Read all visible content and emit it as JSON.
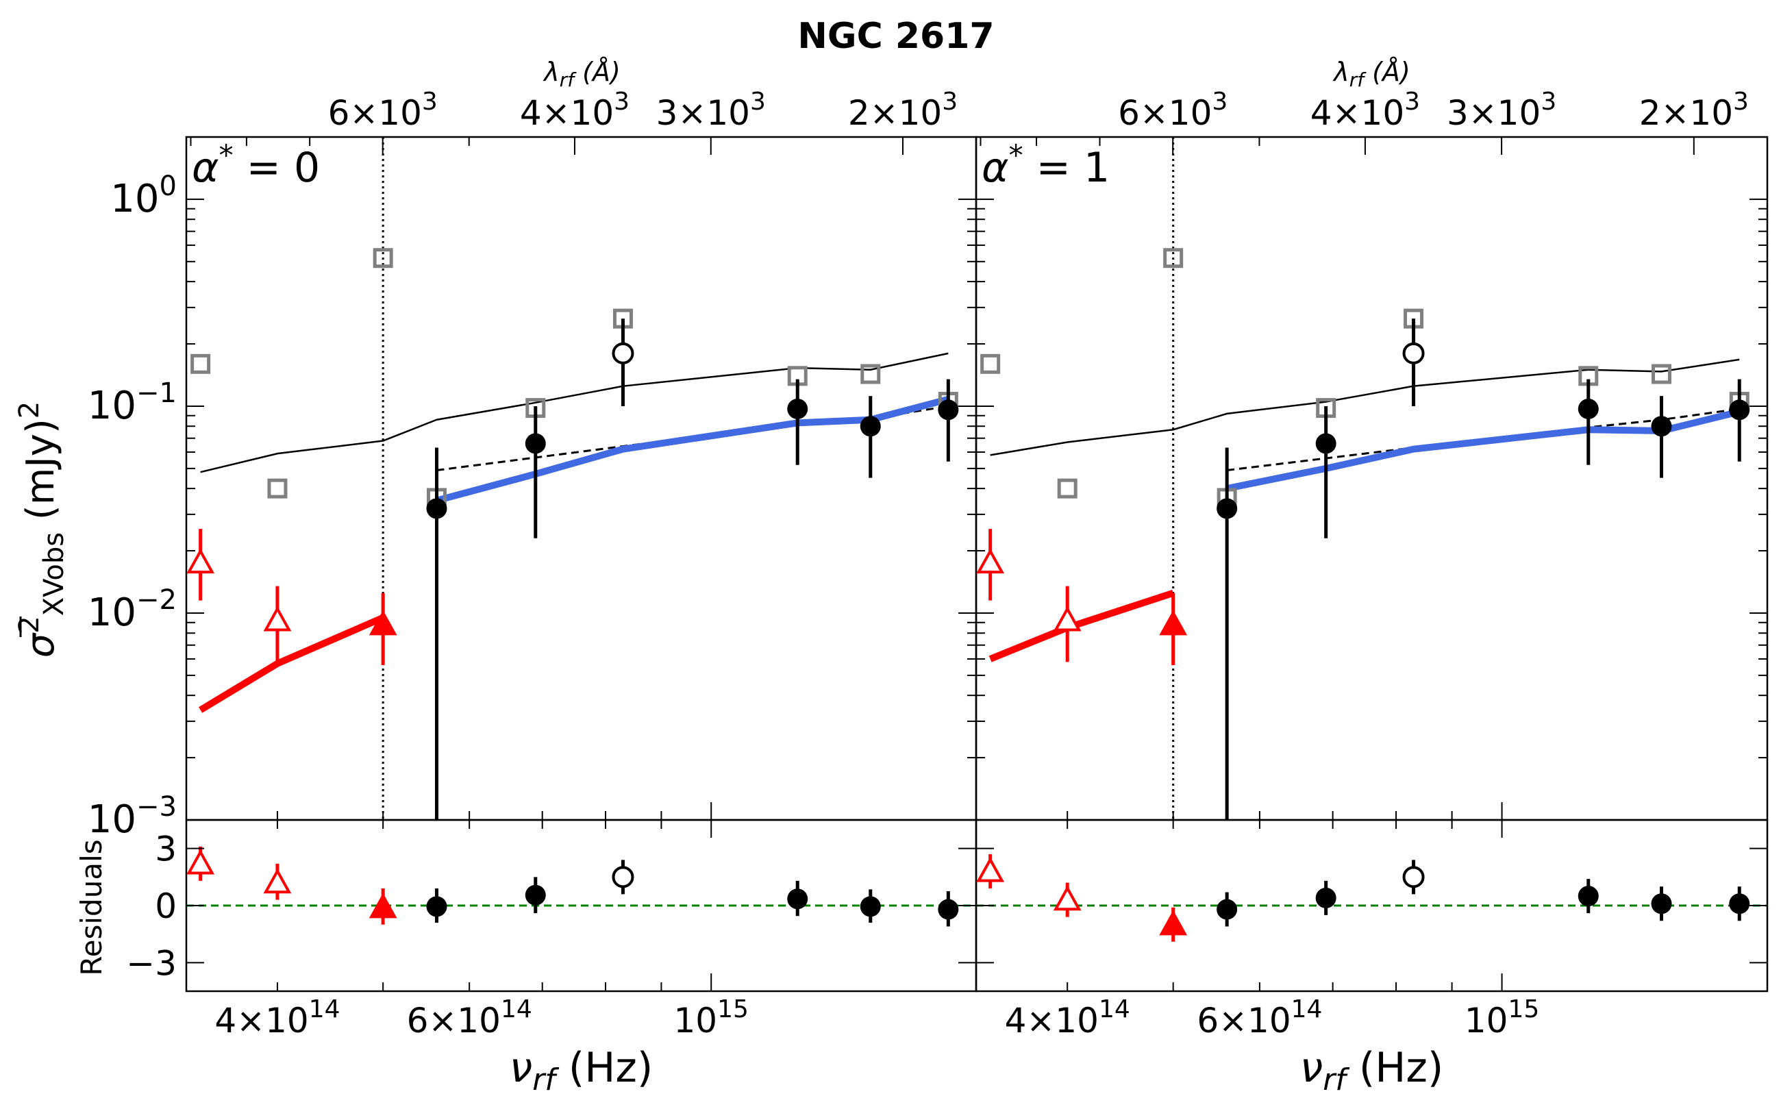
{
  "title": "NGC 2617",
  "ylabel_main": "σ̅² XVobs (mJy)²",
  "ylabel_sigma": "σ",
  "ylabel_sup": "2",
  "ylabel_sub": "XVobs",
  "ylabel_unit": " (mJy)",
  "ylabel_unit_sup": "2",
  "ylabel_resid": "Residuals",
  "xlabel": "ν",
  "xlabel_sub": "rf",
  "xlabel_unit": " (Hz)",
  "top_axis_label": "λ",
  "top_axis_sub": "rf",
  "top_axis_unit": " (Å)",
  "colors": {
    "red": "#ff0000",
    "blue": "#4169e1",
    "black": "#000000",
    "gray": "#808080",
    "green": "#008000"
  },
  "chart_data": [
    {
      "type": "scatter",
      "panel_label": "α* = 0",
      "panel_label_alpha": "α",
      "panel_label_value": " = 0",
      "xscale": "log",
      "yscale": "log",
      "xlim": [
        330000000000000.0,
        1750000000000000.0
      ],
      "ylim": [
        0.001,
        2.0
      ],
      "x_ticks": [
        {
          "v": 400000000000000.0,
          "label": "4×10",
          "exp": "14"
        },
        {
          "v": 600000000000000.0,
          "label": "6×10",
          "exp": "14"
        },
        {
          "v": 1000000000000000.0,
          "label": "10",
          "exp": "15"
        }
      ],
      "y_ticks": [
        {
          "v": 1.0,
          "label": "10",
          "exp": "0"
        },
        {
          "v": 0.1,
          "label": "10",
          "exp": "−1"
        },
        {
          "v": 0.01,
          "label": "10",
          "exp": "−2"
        },
        {
          "v": 0.001,
          "label": "10",
          "exp": "−3"
        }
      ],
      "top_ticks": [
        {
          "lam": 6000,
          "label": "6×10",
          "exp": "3"
        },
        {
          "lam": 4000,
          "label": "4×10",
          "exp": "3"
        },
        {
          "lam": 3000,
          "label": "3×10",
          "exp": "3"
        },
        {
          "lam": 2000,
          "label": "2×10",
          "exp": "3"
        }
      ],
      "vline_x": 500000000000000.0,
      "red_triangles_open": [
        {
          "x": 340000000000000.0,
          "y": 0.0175,
          "lo": 0.0115,
          "hi": 0.0255
        },
        {
          "x": 400000000000000.0,
          "y": 0.0092,
          "lo": 0.0058,
          "hi": 0.0135
        }
      ],
      "red_triangles_filled": [
        {
          "x": 500000000000000.0,
          "y": 0.0088,
          "lo": 0.0056,
          "hi": 0.0125
        }
      ],
      "red_model": {
        "x": [
          340000000000000.0,
          400000000000000.0,
          500000000000000.0
        ],
        "y": [
          0.0034,
          0.0057,
          0.0095
        ]
      },
      "black_filled": [
        {
          "x": 560000000000000.0,
          "y": 0.032,
          "lo": 0.001,
          "hi": 0.063
        },
        {
          "x": 690000000000000.0,
          "y": 0.066,
          "lo": 0.023,
          "hi": 0.1
        },
        {
          "x": 1200000000000000.0,
          "y": 0.097,
          "lo": 0.052,
          "hi": 0.135
        },
        {
          "x": 1400000000000000.0,
          "y": 0.08,
          "lo": 0.045,
          "hi": 0.112
        },
        {
          "x": 1650000000000000.0,
          "y": 0.096,
          "lo": 0.054,
          "hi": 0.135
        }
      ],
      "black_open": [
        {
          "x": 830000000000000.0,
          "y": 0.18,
          "lo": 0.1,
          "hi": 0.265
        }
      ],
      "gray_squares": [
        {
          "x": 340000000000000.0,
          "y": 0.16
        },
        {
          "x": 400000000000000.0,
          "y": 0.04
        },
        {
          "x": 500000000000000.0,
          "y": 0.52
        },
        {
          "x": 560000000000000.0,
          "y": 0.036
        },
        {
          "x": 690000000000000.0,
          "y": 0.098
        },
        {
          "x": 830000000000000.0,
          "y": 0.265
        },
        {
          "x": 1200000000000000.0,
          "y": 0.14
        },
        {
          "x": 1400000000000000.0,
          "y": 0.143
        },
        {
          "x": 1650000000000000.0,
          "y": 0.105
        }
      ],
      "blue_model": {
        "x": [
          560000000000000.0,
          690000000000000.0,
          830000000000000.0,
          1200000000000000.0,
          1400000000000000.0,
          1650000000000000.0
        ],
        "y": [
          0.035,
          0.047,
          0.062,
          0.083,
          0.086,
          0.108
        ]
      },
      "dashed_model": {
        "x": [
          560000000000000.0,
          830000000000000.0,
          1200000000000000.0,
          1400000000000000.0,
          1650000000000000.0
        ],
        "y": [
          0.049,
          0.064,
          0.082,
          0.087,
          0.1
        ]
      },
      "thin_model": {
        "x": [
          340000000000000.0,
          400000000000000.0,
          500000000000000.0,
          560000000000000.0,
          690000000000000.0,
          830000000000000.0,
          1200000000000000.0,
          1400000000000000.0,
          1650000000000000.0
        ],
        "y": [
          0.048,
          0.059,
          0.068,
          0.086,
          0.104,
          0.125,
          0.153,
          0.15,
          0.18
        ]
      },
      "resid_ylim": [
        -4.5,
        4.5
      ],
      "resid_ticks": [
        {
          "v": 3,
          "label": "3"
        },
        {
          "v": 0,
          "label": "0"
        },
        {
          "v": -3,
          "label": "−3"
        }
      ],
      "resid_red_open": [
        {
          "x": 340000000000000.0,
          "y": 2.2,
          "lo": 1.3,
          "hi": 3.1
        },
        {
          "x": 400000000000000.0,
          "y": 1.2,
          "lo": 0.3,
          "hi": 2.2
        }
      ],
      "resid_red_filled": [
        {
          "x": 500000000000000.0,
          "y": -0.1,
          "lo": -1.0,
          "hi": 0.9
        }
      ],
      "resid_black_filled": [
        {
          "x": 560000000000000.0,
          "y": -0.05,
          "lo": -0.9,
          "hi": 0.9
        },
        {
          "x": 690000000000000.0,
          "y": 0.55,
          "lo": -0.4,
          "hi": 1.5
        },
        {
          "x": 1200000000000000.0,
          "y": 0.35,
          "lo": -0.55,
          "hi": 1.3
        },
        {
          "x": 1400000000000000.0,
          "y": -0.05,
          "lo": -0.9,
          "hi": 0.85
        },
        {
          "x": 1650000000000000.0,
          "y": -0.2,
          "lo": -1.1,
          "hi": 0.75
        }
      ],
      "resid_black_open": [
        {
          "x": 830000000000000.0,
          "y": 1.5,
          "lo": 0.6,
          "hi": 2.4
        }
      ],
      "resid_zero": 0
    },
    {
      "type": "scatter",
      "panel_label": "α* = 1",
      "panel_label_alpha": "α",
      "panel_label_value": " = 1",
      "xscale": "log",
      "yscale": "log",
      "xlim": [
        330000000000000.0,
        1750000000000000.0
      ],
      "ylim": [
        0.001,
        2.0
      ],
      "x_ticks": [
        {
          "v": 400000000000000.0,
          "label": "4×10",
          "exp": "14"
        },
        {
          "v": 600000000000000.0,
          "label": "6×10",
          "exp": "14"
        },
        {
          "v": 1000000000000000.0,
          "label": "10",
          "exp": "15"
        }
      ],
      "y_ticks": [],
      "top_ticks": [
        {
          "lam": 6000,
          "label": "6×10",
          "exp": "3"
        },
        {
          "lam": 4000,
          "label": "4×10",
          "exp": "3"
        },
        {
          "lam": 3000,
          "label": "3×10",
          "exp": "3"
        },
        {
          "lam": 2000,
          "label": "2×10",
          "exp": "3"
        }
      ],
      "vline_x": 500000000000000.0,
      "red_triangles_open": [
        {
          "x": 340000000000000.0,
          "y": 0.0175,
          "lo": 0.0115,
          "hi": 0.0255
        },
        {
          "x": 400000000000000.0,
          "y": 0.0092,
          "lo": 0.0058,
          "hi": 0.0135
        }
      ],
      "red_triangles_filled": [
        {
          "x": 500000000000000.0,
          "y": 0.0088,
          "lo": 0.0056,
          "hi": 0.0125
        }
      ],
      "red_model": {
        "x": [
          340000000000000.0,
          400000000000000.0,
          500000000000000.0
        ],
        "y": [
          0.006,
          0.0085,
          0.0125
        ]
      },
      "black_filled": [
        {
          "x": 560000000000000.0,
          "y": 0.032,
          "lo": 0.001,
          "hi": 0.063
        },
        {
          "x": 690000000000000.0,
          "y": 0.066,
          "lo": 0.023,
          "hi": 0.1
        },
        {
          "x": 1200000000000000.0,
          "y": 0.097,
          "lo": 0.052,
          "hi": 0.135
        },
        {
          "x": 1400000000000000.0,
          "y": 0.08,
          "lo": 0.045,
          "hi": 0.112
        },
        {
          "x": 1650000000000000.0,
          "y": 0.096,
          "lo": 0.054,
          "hi": 0.135
        }
      ],
      "black_open": [
        {
          "x": 830000000000000.0,
          "y": 0.18,
          "lo": 0.1,
          "hi": 0.265
        }
      ],
      "gray_squares": [
        {
          "x": 340000000000000.0,
          "y": 0.16
        },
        {
          "x": 400000000000000.0,
          "y": 0.04
        },
        {
          "x": 500000000000000.0,
          "y": 0.52
        },
        {
          "x": 560000000000000.0,
          "y": 0.036
        },
        {
          "x": 690000000000000.0,
          "y": 0.098
        },
        {
          "x": 830000000000000.0,
          "y": 0.265
        },
        {
          "x": 1200000000000000.0,
          "y": 0.14
        },
        {
          "x": 1400000000000000.0,
          "y": 0.143
        },
        {
          "x": 1650000000000000.0,
          "y": 0.105
        }
      ],
      "blue_model": {
        "x": [
          560000000000000.0,
          690000000000000.0,
          830000000000000.0,
          1200000000000000.0,
          1400000000000000.0,
          1650000000000000.0
        ],
        "y": [
          0.04,
          0.05,
          0.062,
          0.077,
          0.076,
          0.094
        ]
      },
      "dashed_model": {
        "x": [
          560000000000000.0,
          830000000000000.0,
          1200000000000000.0,
          1400000000000000.0,
          1650000000000000.0
        ],
        "y": [
          0.049,
          0.063,
          0.079,
          0.086,
          0.097
        ]
      },
      "thin_model": {
        "x": [
          340000000000000.0,
          400000000000000.0,
          500000000000000.0,
          560000000000000.0,
          690000000000000.0,
          830000000000000.0,
          1200000000000000.0,
          1400000000000000.0,
          1650000000000000.0
        ],
        "y": [
          0.058,
          0.067,
          0.077,
          0.092,
          0.105,
          0.125,
          0.15,
          0.147,
          0.168
        ]
      },
      "resid_ylim": [
        -4.5,
        4.5
      ],
      "resid_ticks": [],
      "resid_red_open": [
        {
          "x": 340000000000000.0,
          "y": 1.8,
          "lo": 0.9,
          "hi": 2.7
        },
        {
          "x": 400000000000000.0,
          "y": 0.3,
          "lo": -0.6,
          "hi": 1.2
        }
      ],
      "resid_red_filled": [
        {
          "x": 500000000000000.0,
          "y": -1.0,
          "lo": -1.9,
          "hi": -0.1
        }
      ],
      "resid_black_filled": [
        {
          "x": 560000000000000.0,
          "y": -0.2,
          "lo": -1.1,
          "hi": 0.7
        },
        {
          "x": 690000000000000.0,
          "y": 0.4,
          "lo": -0.5,
          "hi": 1.3
        },
        {
          "x": 1200000000000000.0,
          "y": 0.5,
          "lo": -0.4,
          "hi": 1.4
        },
        {
          "x": 1400000000000000.0,
          "y": 0.1,
          "lo": -0.8,
          "hi": 1.0
        },
        {
          "x": 1650000000000000.0,
          "y": 0.1,
          "lo": -0.8,
          "hi": 1.0
        }
      ],
      "resid_black_open": [
        {
          "x": 830000000000000.0,
          "y": 1.5,
          "lo": 0.6,
          "hi": 2.4
        }
      ],
      "resid_zero": 0
    }
  ]
}
